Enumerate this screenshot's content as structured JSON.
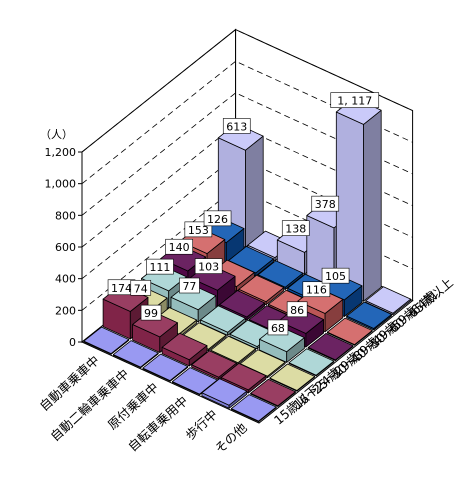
{
  "chart_data": {
    "type": "bar",
    "subtype": "3d-grid",
    "title": "",
    "xlabel": "",
    "ylabel": "",
    "unit_label": "（人）",
    "ylim": [
      0,
      1200
    ],
    "yticks": [
      "0",
      "200",
      "400",
      "600",
      "800",
      "1,000",
      "1,200"
    ],
    "grid": true,
    "categories": [
      "自動車乗車中",
      "自動二輪車乗車中",
      "原付乗車中",
      "自転車乗用中",
      "歩行中",
      "その他"
    ],
    "series": [
      {
        "name": "15歳以下",
        "color": "#8e8ef0",
        "values": [
          5,
          5,
          5,
          5,
          20,
          5
        ]
      },
      {
        "name": "16～24歳",
        "color": "#8e2850",
        "values": [
          174,
          99,
          40,
          15,
          20,
          5
        ]
      },
      {
        "name": "25～29歳",
        "color": "#d8d89a",
        "values": [
          74,
          20,
          10,
          10,
          10,
          5
        ]
      },
      {
        "name": "30～39歳",
        "color": "#a6d2d2",
        "values": [
          111,
          77,
          20,
          15,
          68,
          5
        ]
      },
      {
        "name": "40～49歳",
        "color": "#5a0a50",
        "values": [
          140,
          103,
          20,
          10,
          86,
          5
        ]
      },
      {
        "name": "50～59歳",
        "color": "#d06060",
        "values": [
          153,
          30,
          20,
          10,
          116,
          5
        ]
      },
      {
        "name": "60～64歳",
        "color": "#0a55b0",
        "values": [
          126,
          20,
          15,
          15,
          105,
          10
        ]
      },
      {
        "name": "65歳以上",
        "color": "#c4c4f8",
        "values": [
          613,
          20,
          138,
          378,
          1117,
          10
        ]
      }
    ],
    "data_labels": [
      {
        "series": "16～24歳",
        "category": "自動車乗車中",
        "text": "174"
      },
      {
        "series": "16～24歳",
        "category": "自動二輪車乗車中",
        "text": "99"
      },
      {
        "series": "25～29歳",
        "category": "自動車乗車中",
        "text": "74"
      },
      {
        "series": "30～39歳",
        "category": "自動車乗車中",
        "text": "111"
      },
      {
        "series": "30～39歳",
        "category": "自動二輪車乗車中",
        "text": "77"
      },
      {
        "series": "30～39歳",
        "category": "歩行中",
        "text": "68"
      },
      {
        "series": "40～49歳",
        "category": "自動車乗車中",
        "text": "140"
      },
      {
        "series": "40～49歳",
        "category": "自動二輪車乗車中",
        "text": "103"
      },
      {
        "series": "40～49歳",
        "category": "歩行中",
        "text": "86"
      },
      {
        "series": "50～59歳",
        "category": "自動車乗車中",
        "text": "153"
      },
      {
        "series": "50～59歳",
        "category": "歩行中",
        "text": "116"
      },
      {
        "series": "60～64歳",
        "category": "自動車乗車中",
        "text": "126"
      },
      {
        "series": "60～64歳",
        "category": "歩行中",
        "text": "105"
      },
      {
        "series": "65歳以上",
        "category": "自動車乗車中",
        "text": "613"
      },
      {
        "series": "65歳以上",
        "category": "原付乗車中",
        "text": "138"
      },
      {
        "series": "65歳以上",
        "category": "自転車乗用中",
        "text": "378"
      },
      {
        "series": "65歳以上",
        "category": "歩行中",
        "text": "1, 117"
      }
    ]
  }
}
